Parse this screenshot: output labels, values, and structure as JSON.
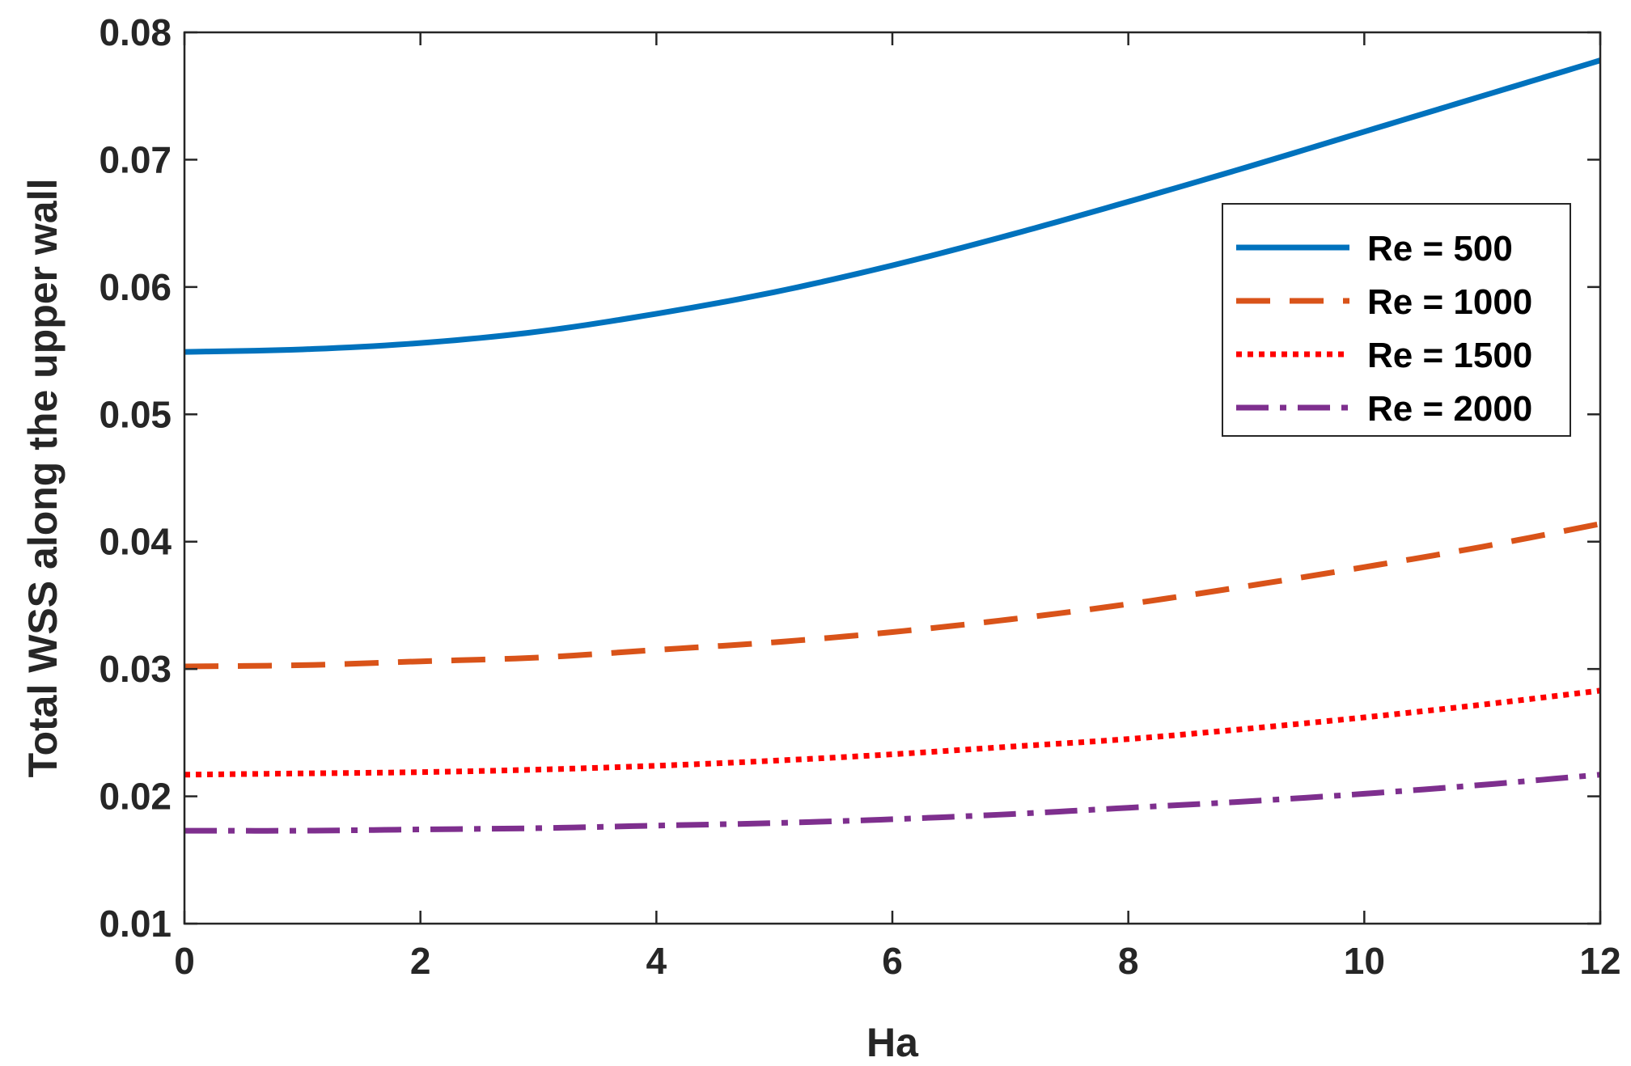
{
  "chart_data": {
    "type": "line",
    "title": "",
    "xlabel": "Ha",
    "ylabel": "Total WSS along the upper wall",
    "xlim": [
      0,
      12
    ],
    "ylim": [
      0.01,
      0.08
    ],
    "xticks": [
      0,
      2,
      4,
      6,
      8,
      10,
      12
    ],
    "xtick_labels": [
      "0",
      "2",
      "4",
      "6",
      "8",
      "10",
      "12"
    ],
    "yticks": [
      0.01,
      0.02,
      0.03,
      0.04,
      0.05,
      0.06,
      0.07,
      0.08
    ],
    "ytick_labels": [
      "0.01",
      "0.02",
      "0.03",
      "0.04",
      "0.05",
      "0.06",
      "0.07",
      "0.08"
    ],
    "grid": false,
    "legend_position": "top-right",
    "x": [
      0,
      1,
      2,
      3,
      4,
      5,
      6,
      7,
      8,
      9,
      10,
      11,
      12
    ],
    "series": [
      {
        "name": "Re = 500",
        "color": "#0072BD",
        "style": "solid",
        "values": [
          0.0549,
          0.0551,
          0.0556,
          0.0565,
          0.0579,
          0.0596,
          0.0617,
          0.0641,
          0.0667,
          0.0694,
          0.0722,
          0.075,
          0.0778
        ]
      },
      {
        "name": "Re = 1000",
        "color": "#D95319",
        "style": "dashed",
        "values": [
          0.0302,
          0.0303,
          0.0306,
          0.0309,
          0.0315,
          0.0321,
          0.0329,
          0.0339,
          0.0351,
          0.0365,
          0.038,
          0.0396,
          0.0414
        ]
      },
      {
        "name": "Re = 1500",
        "color": "#FF0000",
        "style": "dotted",
        "values": [
          0.0217,
          0.0218,
          0.0219,
          0.0221,
          0.0224,
          0.0228,
          0.0233,
          0.0239,
          0.0245,
          0.0253,
          0.0262,
          0.0272,
          0.0283
        ]
      },
      {
        "name": "Re = 2000",
        "color": "#7E2F8E",
        "style": "dashdot",
        "values": [
          0.0173,
          0.0173,
          0.0174,
          0.0175,
          0.0177,
          0.0179,
          0.0182,
          0.0186,
          0.0191,
          0.0196,
          0.0202,
          0.0209,
          0.0217
        ]
      }
    ]
  }
}
